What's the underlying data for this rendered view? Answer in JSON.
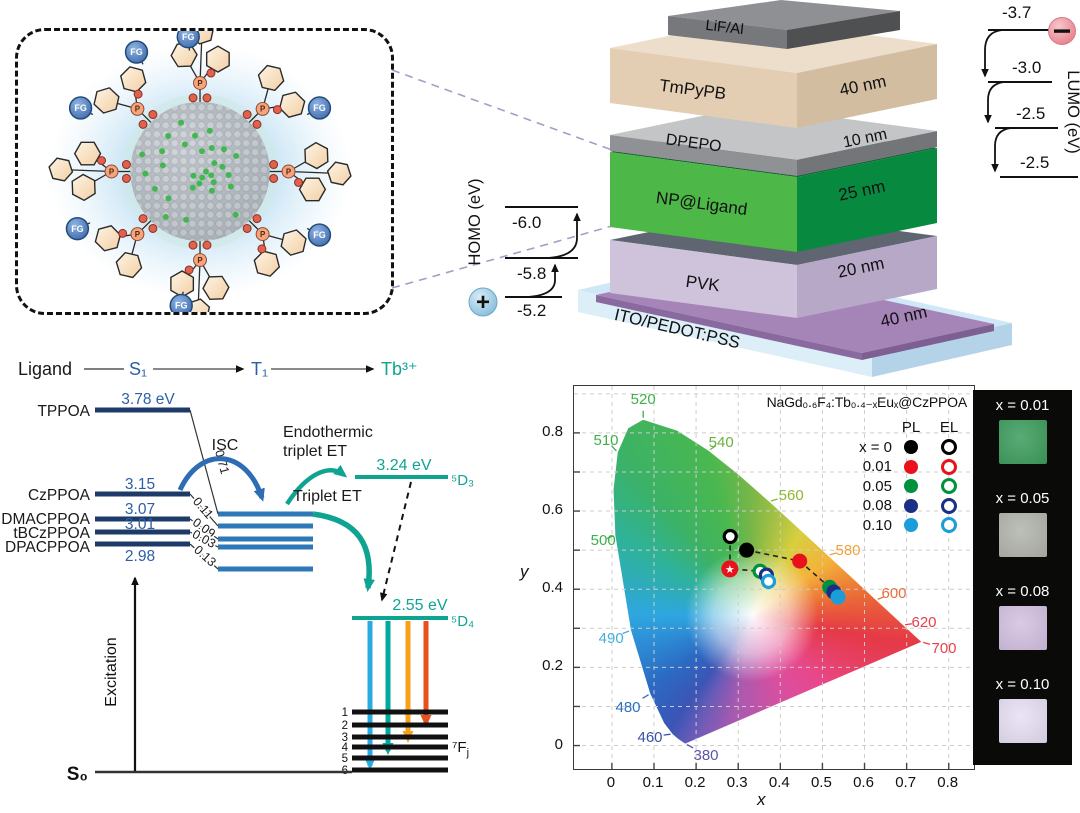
{
  "np_box": {
    "fg_label": "FG",
    "p_label": "P"
  },
  "device": {
    "layers": [
      {
        "name": "LiF/Al",
        "thickness": ""
      },
      {
        "name": "TmPyPB",
        "thickness": "40 nm"
      },
      {
        "name": "DPEPO",
        "thickness": "10 nm"
      },
      {
        "name": "NP@Ligand",
        "thickness": "25 nm"
      },
      {
        "name": "PVK",
        "thickness": "20 nm"
      },
      {
        "name": "ITO/PEDOT:PSS",
        "thickness": "40 nm"
      }
    ],
    "homo": {
      "label": "HOMO (eV)",
      "levels": [
        "-6.0",
        "-5.8",
        "-5.2"
      ]
    },
    "lumo": {
      "label": "LUMO (eV)",
      "levels": [
        "-3.7",
        "-3.0",
        "-2.5",
        "-2.5"
      ]
    },
    "plus_icon": "+",
    "minus_icon": "−"
  },
  "energy": {
    "header": {
      "ligand": "Ligand",
      "s1": "S₁",
      "t1": "T₁",
      "tb": "Tb³⁺"
    },
    "ligands": [
      {
        "name": "TPPOA",
        "value": "3.78 eV",
        "rate": "0.71"
      },
      {
        "name": "CzPPOA",
        "value": "3.15",
        "rate": "0.11"
      },
      {
        "name": "DMACPPOA",
        "value": "3.07",
        "rate": "0.09"
      },
      {
        "name": "tBCzPPOA",
        "value": "3.01",
        "rate": "0.03"
      },
      {
        "name": "DPACPPOA",
        "value": "2.98",
        "rate": "0.13"
      }
    ],
    "isc_label": "ISC",
    "endothermic_label_1": "Endothermic",
    "endothermic_label_2": "triplet ET",
    "triplet_et_label": "Triplet ET",
    "d3_value": "3.24 eV",
    "d3_label": "⁵D₃",
    "d4_value": "2.55 eV",
    "d4_label": "⁵D₄",
    "f_levels": [
      "1",
      "2",
      "3",
      "4",
      "5",
      "6"
    ],
    "fj_label": "⁷F",
    "fj_sub": "j",
    "excitation_label": "Excitation",
    "s0_label": "S₀"
  },
  "chart_data": {
    "type": "scatter",
    "title": "NaGd₀.₆F₄:Tb₀.₄₋ₓEuₓ@CzPPOA",
    "xlabel": "x",
    "ylabel": "y",
    "xlim": [
      -0.09,
      0.86
    ],
    "ylim": [
      -0.06,
      0.92
    ],
    "grid": true,
    "xticks": [
      "0",
      "0.1",
      "0.2",
      "0.3",
      "0.4",
      "0.5",
      "0.6",
      "0.7",
      "0.8"
    ],
    "yticks": [
      "0",
      "0.2",
      "0.4",
      "0.6",
      "0.8"
    ],
    "legend": {
      "col_pl": "PL",
      "col_el": "EL",
      "rows": [
        {
          "label": "x = 0",
          "color": "#000000"
        },
        {
          "label": "0.01",
          "color": "#e8111c"
        },
        {
          "label": "0.05",
          "color": "#00913f"
        },
        {
          "label": "0.08",
          "color": "#1c2f87"
        },
        {
          "label": "0.10",
          "color": "#1b9dd9"
        }
      ]
    },
    "series": [
      {
        "name": "PL",
        "marker": "filled",
        "points": [
          [
            0.32,
            0.5
          ],
          [
            0.446,
            0.472
          ],
          [
            0.517,
            0.405
          ],
          [
            0.527,
            0.393
          ],
          [
            0.537,
            0.38
          ]
        ]
      },
      {
        "name": "EL",
        "marker": "open",
        "star_index": 1,
        "points": [
          [
            0.281,
            0.535
          ],
          [
            0.28,
            0.452
          ],
          [
            0.352,
            0.446
          ],
          [
            0.367,
            0.436
          ],
          [
            0.372,
            0.42
          ]
        ]
      }
    ],
    "wavelength_labels": [
      {
        "text": "380",
        "color": "#5a55a8",
        "x": 33.0,
        "y": 96.3
      },
      {
        "text": "460",
        "color": "#3a52a8",
        "x": 19.0,
        "y": 91.6
      },
      {
        "text": "480",
        "color": "#2e6fc0",
        "x": 13.5,
        "y": 83.8
      },
      {
        "text": "490",
        "color": "#45aede",
        "x": 9.3,
        "y": 65.8
      },
      {
        "text": "500",
        "color": "#3faf49",
        "x": 7.3,
        "y": 40.2
      },
      {
        "text": "510",
        "color": "#3faf49",
        "x": 8.0,
        "y": 14.1
      },
      {
        "text": "520",
        "color": "#3faf49",
        "x": 17.3,
        "y": 3.4
      },
      {
        "text": "540",
        "color": "#6ab33f",
        "x": 36.8,
        "y": 14.6
      },
      {
        "text": "560",
        "color": "#8cb832",
        "x": 54.3,
        "y": 28.5
      },
      {
        "text": "580",
        "color": "#f0a23c",
        "x": 68.5,
        "y": 42.8
      },
      {
        "text": "600",
        "color": "#ed6a3c",
        "x": 80.0,
        "y": 54.1
      },
      {
        "text": "620",
        "color": "#e6404a",
        "x": 87.5,
        "y": 61.6
      },
      {
        "text": "700",
        "color": "#e6404a",
        "x": 92.5,
        "y": 68.4
      }
    ]
  },
  "strip": {
    "samples": [
      {
        "label": "x = 0.01",
        "color": "#3f9e5f"
      },
      {
        "label": "x = 0.05",
        "color": "#b3b5ae"
      },
      {
        "label": "x = 0.08",
        "color": "#d4c2e2"
      },
      {
        "label": "x = 0.10",
        "color": "#e8e0f5"
      }
    ]
  }
}
